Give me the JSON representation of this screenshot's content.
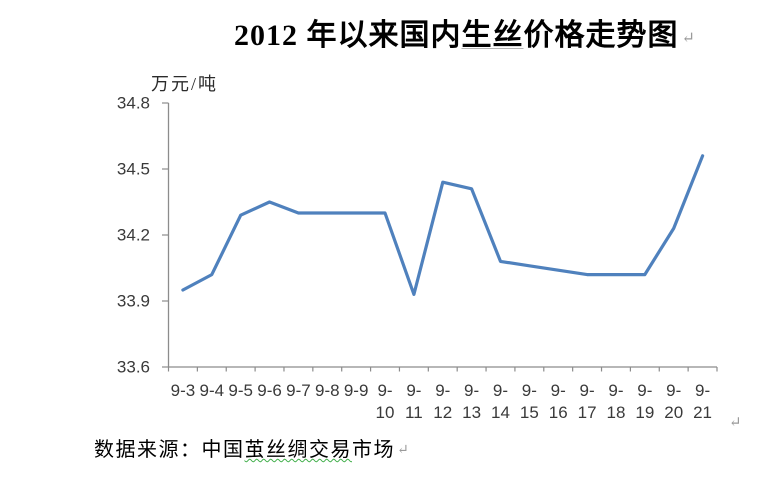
{
  "title": {
    "part1": "2012 年以来国内",
    "part2": "生丝",
    "part3": "价格走势图"
  },
  "marks": {
    "return_mark": "↵"
  },
  "source": {
    "part1": "数据来源：中国",
    "part2": "茧丝绸交易",
    "part3": "市场"
  },
  "colors": {
    "line": "#4F81BD",
    "axis": "#8C8C8C",
    "tick_label": "#3A3A3A",
    "grammar_underline": "#3FAE49",
    "spell_underline": "#B3B3B3"
  },
  "chart_data": {
    "type": "line",
    "title": "2012 年以来国内生丝价格走势图",
    "unit_label": "万元/吨",
    "xlabel": "",
    "ylabel": "万元/吨",
    "source_note": "数据来源：中国茧丝绸交易市场",
    "categories": [
      "9-3",
      "9-4",
      "9-5",
      "9-6",
      "9-7",
      "9-8",
      "9-9",
      "9-10",
      "9-11",
      "9-12",
      "9-13",
      "9-14",
      "9-15",
      "9-16",
      "9-17",
      "9-18",
      "9-19",
      "9-20",
      "9-21"
    ],
    "values": [
      33.95,
      34.02,
      34.29,
      34.35,
      34.3,
      34.3,
      34.3,
      34.3,
      33.93,
      34.44,
      34.41,
      34.08,
      34.06,
      34.04,
      34.02,
      34.02,
      34.02,
      34.23,
      34.56
    ],
    "ylim": [
      33.6,
      34.8
    ],
    "yticks": [
      33.6,
      33.9,
      34.2,
      34.5,
      34.8
    ],
    "grid": false,
    "legend": false,
    "line_color": "#4F81BD",
    "axis_color": "#8C8C8C"
  }
}
